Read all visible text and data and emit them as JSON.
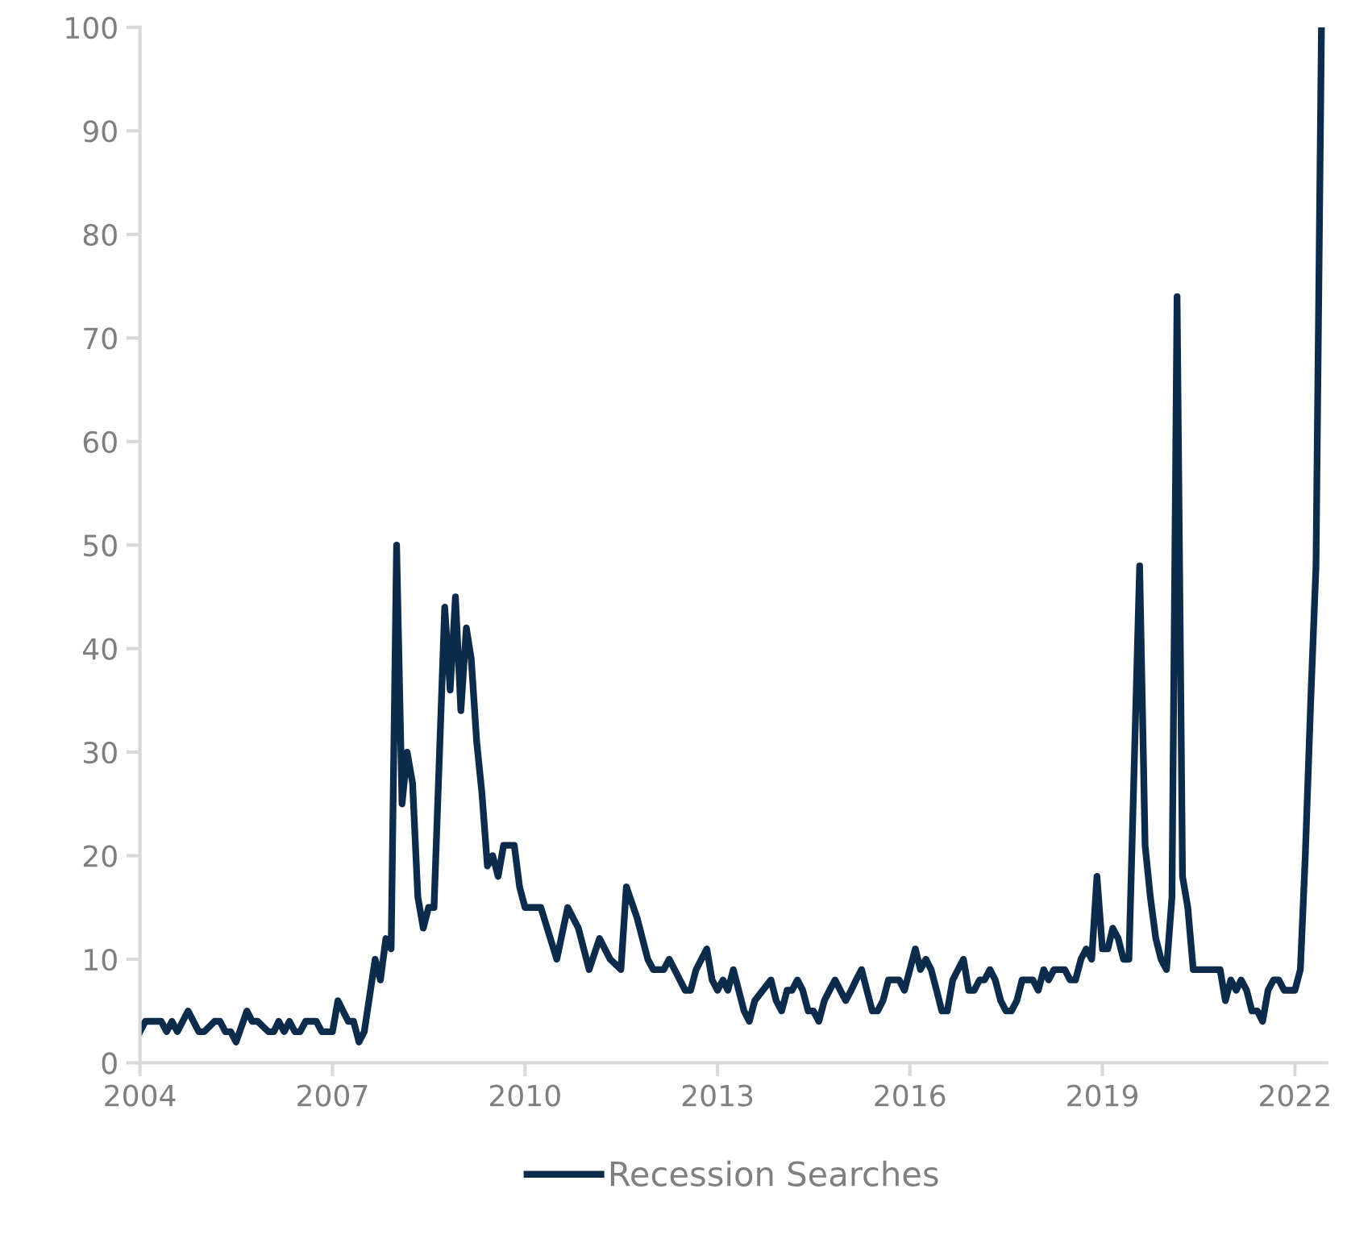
{
  "chart_data": {
    "type": "line",
    "x": [
      "2004-01",
      "2004-02",
      "2004-05",
      "2004-06",
      "2004-07",
      "2004-08",
      "2004-10",
      "2004-12",
      "2005-01",
      "2005-03",
      "2005-04",
      "2005-05",
      "2005-06",
      "2005-07",
      "2005-09",
      "2005-10",
      "2005-11",
      "2006-01",
      "2006-02",
      "2006-03",
      "2006-04",
      "2006-05",
      "2006-06",
      "2006-07",
      "2006-08",
      "2006-10",
      "2006-11",
      "2007-01",
      "2007-02",
      "2007-04",
      "2007-05",
      "2007-06",
      "2007-07",
      "2007-09",
      "2007-10",
      "2007-11",
      "2007-12",
      "2008-01",
      "2008-02",
      "2008-03",
      "2008-04",
      "2008-05",
      "2008-06",
      "2008-07",
      "2008-08",
      "2008-10",
      "2008-11",
      "2008-12",
      "2009-01",
      "2009-02",
      "2009-03",
      "2009-04",
      "2009-05",
      "2009-06",
      "2009-07",
      "2009-08",
      "2009-09",
      "2009-11",
      "2009-12",
      "2010-01",
      "2010-04",
      "2010-07",
      "2010-09",
      "2010-11",
      "2011-01",
      "2011-03",
      "2011-05",
      "2011-07",
      "2011-08",
      "2011-10",
      "2011-12",
      "2012-01",
      "2012-03",
      "2012-04",
      "2012-07",
      "2012-08",
      "2012-09",
      "2012-11",
      "2012-12",
      "2013-01",
      "2013-02",
      "2013-03",
      "2013-04",
      "2013-06",
      "2013-07",
      "2013-08",
      "2013-11",
      "2013-12",
      "2014-01",
      "2014-02",
      "2014-03",
      "2014-04",
      "2014-05",
      "2014-06",
      "2014-07",
      "2014-08",
      "2014-09",
      "2014-10",
      "2014-11",
      "2014-12",
      "2015-01",
      "2015-02",
      "2015-03",
      "2015-04",
      "2015-05",
      "2015-06",
      "2015-07",
      "2015-08",
      "2015-09",
      "2015-11",
      "2015-12",
      "2016-01",
      "2016-02",
      "2016-03",
      "2016-04",
      "2016-05",
      "2016-06",
      "2016-07",
      "2016-08",
      "2016-09",
      "2016-10",
      "2016-11",
      "2016-12",
      "2017-01",
      "2017-02",
      "2017-03",
      "2017-04",
      "2017-05",
      "2017-06",
      "2017-07",
      "2017-08",
      "2017-09",
      "2017-10",
      "2017-11",
      "2017-12",
      "2018-01",
      "2018-02",
      "2018-03",
      "2018-04",
      "2018-05",
      "2018-06",
      "2018-07",
      "2018-08",
      "2018-09",
      "2018-10",
      "2018-11",
      "2018-12",
      "2019-01",
      "2019-02",
      "2019-03",
      "2019-04",
      "2019-05",
      "2019-06",
      "2019-08",
      "2019-09",
      "2019-10",
      "2019-11",
      "2019-12",
      "2020-01",
      "2020-02",
      "2020-03",
      "2020-04",
      "2020-05",
      "2020-06",
      "2020-11",
      "2020-12",
      "2021-01",
      "2021-02",
      "2021-03",
      "2021-04",
      "2021-05",
      "2021-06",
      "2021-07",
      "2021-08",
      "2021-09",
      "2021-10",
      "2021-11",
      "2022-01",
      "2022-02",
      "2022-03",
      "2022-04",
      "2022-05",
      "2022-06"
    ],
    "series": [
      {
        "name": "Recession Searches",
        "color": "#0d2c4c",
        "values": [
          3,
          4,
          4,
          3,
          4,
          3,
          5,
          3,
          3,
          4,
          4,
          3,
          3,
          2,
          5,
          4,
          4,
          3,
          3,
          4,
          3,
          4,
          3,
          3,
          4,
          4,
          3,
          3,
          6,
          4,
          4,
          2,
          3,
          10,
          8,
          12,
          11,
          50,
          25,
          30,
          27,
          16,
          13,
          15,
          15,
          44,
          36,
          45,
          34,
          42,
          39,
          31,
          26,
          19,
          20,
          18,
          21,
          21,
          17,
          15,
          15,
          10,
          15,
          13,
          9,
          12,
          10,
          9,
          17,
          14,
          10,
          9,
          9,
          10,
          7,
          7,
          9,
          11,
          8,
          7,
          8,
          7,
          9,
          5,
          4,
          6,
          8,
          6,
          5,
          7,
          7,
          8,
          7,
          5,
          5,
          4,
          6,
          7,
          8,
          7,
          6,
          7,
          8,
          9,
          7,
          5,
          5,
          6,
          8,
          8,
          7,
          9,
          11,
          9,
          10,
          9,
          7,
          5,
          5,
          8,
          9,
          10,
          7,
          7,
          8,
          8,
          9,
          8,
          6,
          5,
          5,
          6,
          8,
          8,
          8,
          7,
          9,
          8,
          9,
          9,
          9,
          8,
          8,
          10,
          11,
          10,
          18,
          11,
          11,
          13,
          12,
          10,
          10,
          48,
          21,
          16,
          12,
          10,
          9,
          16,
          74,
          18,
          15,
          9,
          9,
          6,
          8,
          7,
          8,
          7,
          5,
          5,
          4,
          7,
          8,
          8,
          7,
          7,
          9,
          20,
          35,
          48,
          100
        ]
      }
    ],
    "xlim": [
      "2004-01",
      "2022-07"
    ],
    "xticks": [
      {
        "value": "2004-01",
        "label": "2004"
      },
      {
        "value": "2007-01",
        "label": "2007"
      },
      {
        "value": "2010-01",
        "label": "2010"
      },
      {
        "value": "2013-01",
        "label": "2013"
      },
      {
        "value": "2016-01",
        "label": "2016"
      },
      {
        "value": "2019-01",
        "label": "2019"
      },
      {
        "value": "2022-01",
        "label": "2022"
      }
    ],
    "ylim": [
      0,
      100
    ],
    "yticks": [
      0,
      10,
      20,
      30,
      40,
      50,
      60,
      70,
      80,
      90,
      100
    ],
    "grid": false,
    "legend": "bottom",
    "marker": "none",
    "line_style": "solid"
  }
}
